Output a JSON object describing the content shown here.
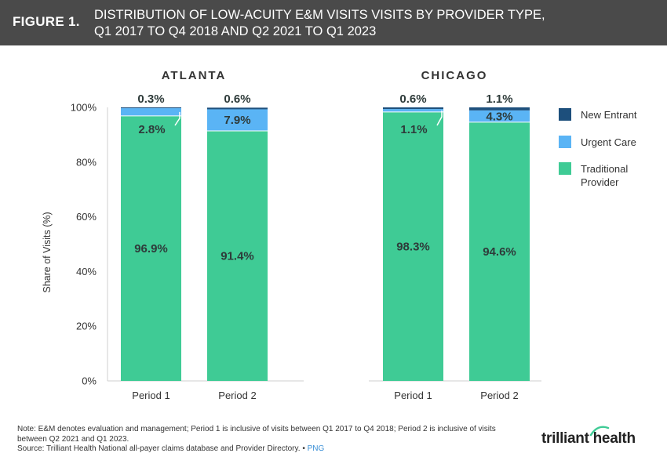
{
  "header": {
    "figure_label": "FIGURE 1.",
    "title_line1": "DISTRIBUTION OF LOW-ACUITY E&M VISITS VISITS BY PROVIDER TYPE,",
    "title_line2": "Q1 2017 TO Q4 2018 AND Q2 2021 TO Q1 2023"
  },
  "chart_data": {
    "type": "bar",
    "stacked": true,
    "ylabel": "Share of  Visits (%)",
    "ylim": [
      0,
      100
    ],
    "yticks": [
      "0%",
      "20%",
      "40%",
      "60%",
      "80%",
      "100%"
    ],
    "categories": [
      "Period 1",
      "Period 2"
    ],
    "legend": [
      "New Entrant",
      "Urgent Care",
      "Traditional Provider"
    ],
    "legend_lines": [
      [
        "New Entrant"
      ],
      [
        "Urgent Care"
      ],
      [
        "Traditional",
        "Provider"
      ]
    ],
    "colors": {
      "new_entrant": "#1d4f7c",
      "urgent_care": "#5ab4f5",
      "traditional": "#3fcb95"
    },
    "panels": [
      {
        "title": "ATLANTA",
        "series": [
          {
            "name": "Traditional Provider",
            "values": [
              96.9,
              91.4
            ],
            "labels": [
              "96.9%",
              "91.4%"
            ]
          },
          {
            "name": "Urgent Care",
            "values": [
              2.8,
              7.9
            ],
            "labels": [
              "2.8%",
              "7.9%"
            ]
          },
          {
            "name": "New Entrant",
            "values": [
              0.3,
              0.6
            ],
            "labels": [
              "0.3%",
              "0.6%"
            ]
          }
        ]
      },
      {
        "title": "CHICAGO",
        "series": [
          {
            "name": "Traditional Provider",
            "values": [
              98.3,
              94.6
            ],
            "labels": [
              "98.3%",
              "94.6%"
            ]
          },
          {
            "name": "Urgent Care",
            "values": [
              1.1,
              4.3
            ],
            "labels": [
              "1.1%",
              "4.3%"
            ]
          },
          {
            "name": "New Entrant",
            "values": [
              0.6,
              1.1
            ],
            "labels": [
              "0.6%",
              "1.1%"
            ]
          }
        ]
      }
    ]
  },
  "footer": {
    "note_line1": "Note: E&M denotes evaluation and management; Period 1 is inclusive of visits between Q1 2017 to Q4 2018; Period 2 is inclusive of visits",
    "note_line2": "between Q2 2021 and Q1 2023.",
    "source": "Source: Trilliant Health National all-payer claims database and Provider Directory.",
    "separator": "•",
    "png_link": "PNG",
    "logo_text": "trilliant health"
  }
}
